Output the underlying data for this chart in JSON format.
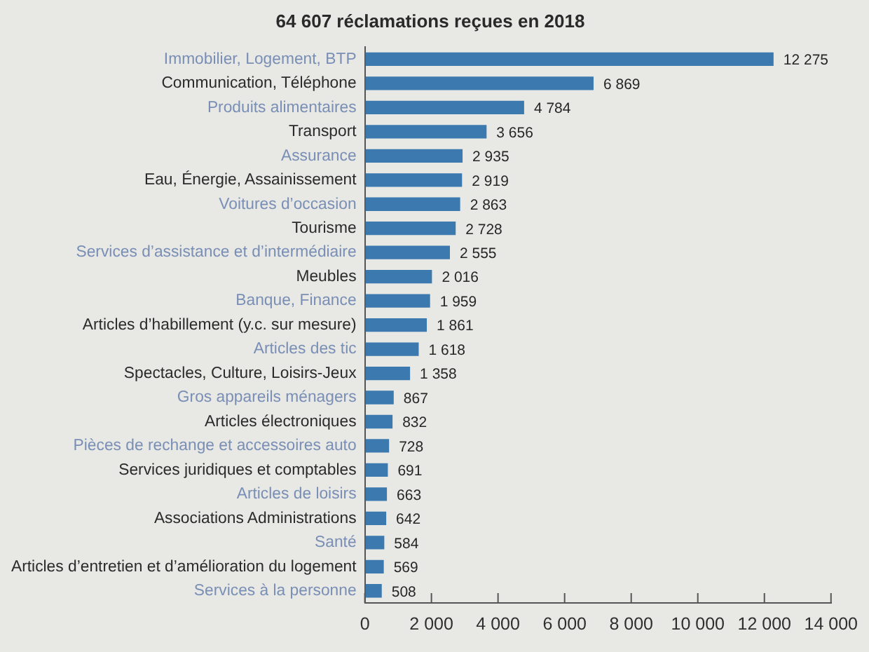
{
  "chart_data": {
    "type": "bar",
    "orientation": "horizontal",
    "title": "64 607 réclamations reçues en 2018",
    "categories": [
      "Immobilier, Logement, BTP",
      "Communication, Téléphone",
      "Produits alimentaires",
      "Transport",
      "Assurance",
      "Eau, Énergie, Assainissement",
      "Voitures d’occasion",
      "Tourisme",
      "Services d’assistance et d’intermédiaire",
      "Meubles",
      "Banque, Finance",
      "Articles d’habillement (y.c. sur mesure)",
      "Articles des tic",
      "Spectacles, Culture, Loisirs-Jeux",
      "Gros appareils ménagers",
      "Articles électroniques",
      "Pièces de rechange et accessoires auto",
      "Services juridiques et comptables",
      "Articles de loisirs",
      "Associations Administrations",
      "Santé",
      "Articles d’entretien et d’amélioration du logement",
      "Services à la personne"
    ],
    "values": [
      12275,
      6869,
      4784,
      3656,
      2935,
      2919,
      2863,
      2728,
      2555,
      2016,
      1959,
      1861,
      1618,
      1358,
      867,
      832,
      728,
      691,
      663,
      642,
      584,
      569,
      508
    ],
    "value_labels": [
      "12 275",
      "6 869",
      "4 784",
      "3 656",
      "2 935",
      "2 919",
      "2 863",
      "2 728",
      "2 555",
      "2 016",
      "1 959",
      "1 861",
      "1 618",
      "1 358",
      "867",
      "832",
      "728",
      "691",
      "663",
      "642",
      "584",
      "569",
      "508"
    ],
    "color": "#3b79ae",
    "xlim": [
      0,
      14000
    ],
    "xticks": [
      0,
      {
        "value": 2000,
        "label": "2 000"
      },
      {
        "value": 4000,
        "label": "4 000"
      },
      {
        "value": 6000,
        "label": "6 000"
      },
      {
        "value": 8000,
        "label": "8 000"
      },
      {
        "value": 10000,
        "label": "10 000"
      },
      {
        "value": 12000,
        "label": "12 000"
      },
      {
        "value": 14000,
        "label": "14 000"
      }
    ]
  }
}
